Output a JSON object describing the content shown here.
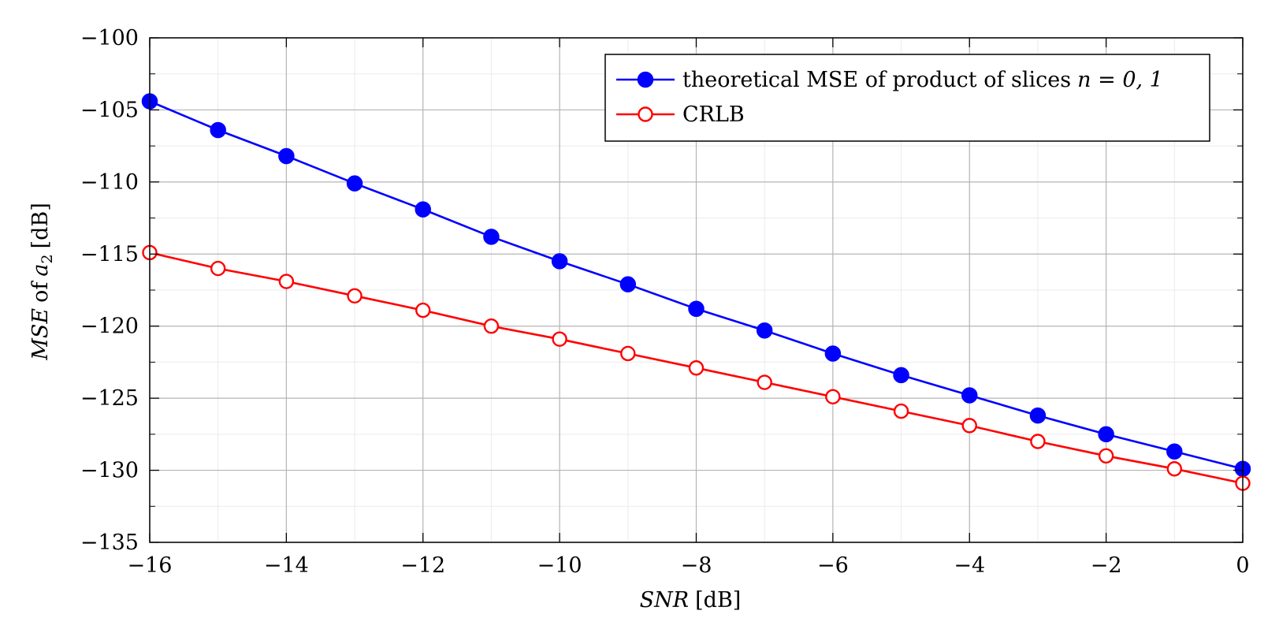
{
  "chart_data": {
    "type": "line",
    "title": "",
    "xlabel": {
      "var": "SNR",
      "unit": "[dB]"
    },
    "ylabel": {
      "var": "MSE",
      "mid": "of",
      "sym": "a",
      "sub": "2",
      "unit": "[dB]"
    },
    "xlim": [
      -16,
      0
    ],
    "ylim": [
      -135,
      -100
    ],
    "x_ticks": [
      -16,
      -14,
      -12,
      -10,
      -8,
      -6,
      -4,
      -2,
      0
    ],
    "x_tick_labels": [
      "−16",
      "−14",
      "−12",
      "−10",
      "−8",
      "−6",
      "−4",
      "−2",
      "0"
    ],
    "y_ticks": [
      -100,
      -105,
      -110,
      -115,
      -120,
      -125,
      -130,
      -135
    ],
    "y_tick_labels": [
      "−100",
      "−105",
      "−110",
      "−115",
      "−120",
      "−125",
      "−130",
      "−135"
    ],
    "grid": true,
    "legend_position": "top-right",
    "x": [
      -16,
      -15,
      -14,
      -13,
      -12,
      -11,
      -10,
      -9,
      -8,
      -7,
      -6,
      -5,
      -4,
      -3,
      -2,
      -1,
      0
    ],
    "series": [
      {
        "name": "theoretical MSE of product of slices",
        "name_math": "n = 0, 1",
        "color": "#0000ff",
        "marker": "filled-circle",
        "values": [
          -104.4,
          -106.4,
          -108.2,
          -110.1,
          -111.9,
          -113.8,
          -115.5,
          -117.1,
          -118.8,
          -120.3,
          -121.9,
          -123.4,
          -124.8,
          -126.2,
          -127.5,
          -128.7,
          -129.9
        ]
      },
      {
        "name": "CRLB",
        "color": "#ff0000",
        "marker": "open-circle",
        "values": [
          -114.9,
          -116.0,
          -116.9,
          -117.9,
          -118.9,
          -120.0,
          -120.9,
          -121.9,
          -122.9,
          -123.9,
          -124.9,
          -125.9,
          -126.9,
          -128.0,
          -129.0,
          -129.9,
          -130.9
        ]
      }
    ]
  }
}
